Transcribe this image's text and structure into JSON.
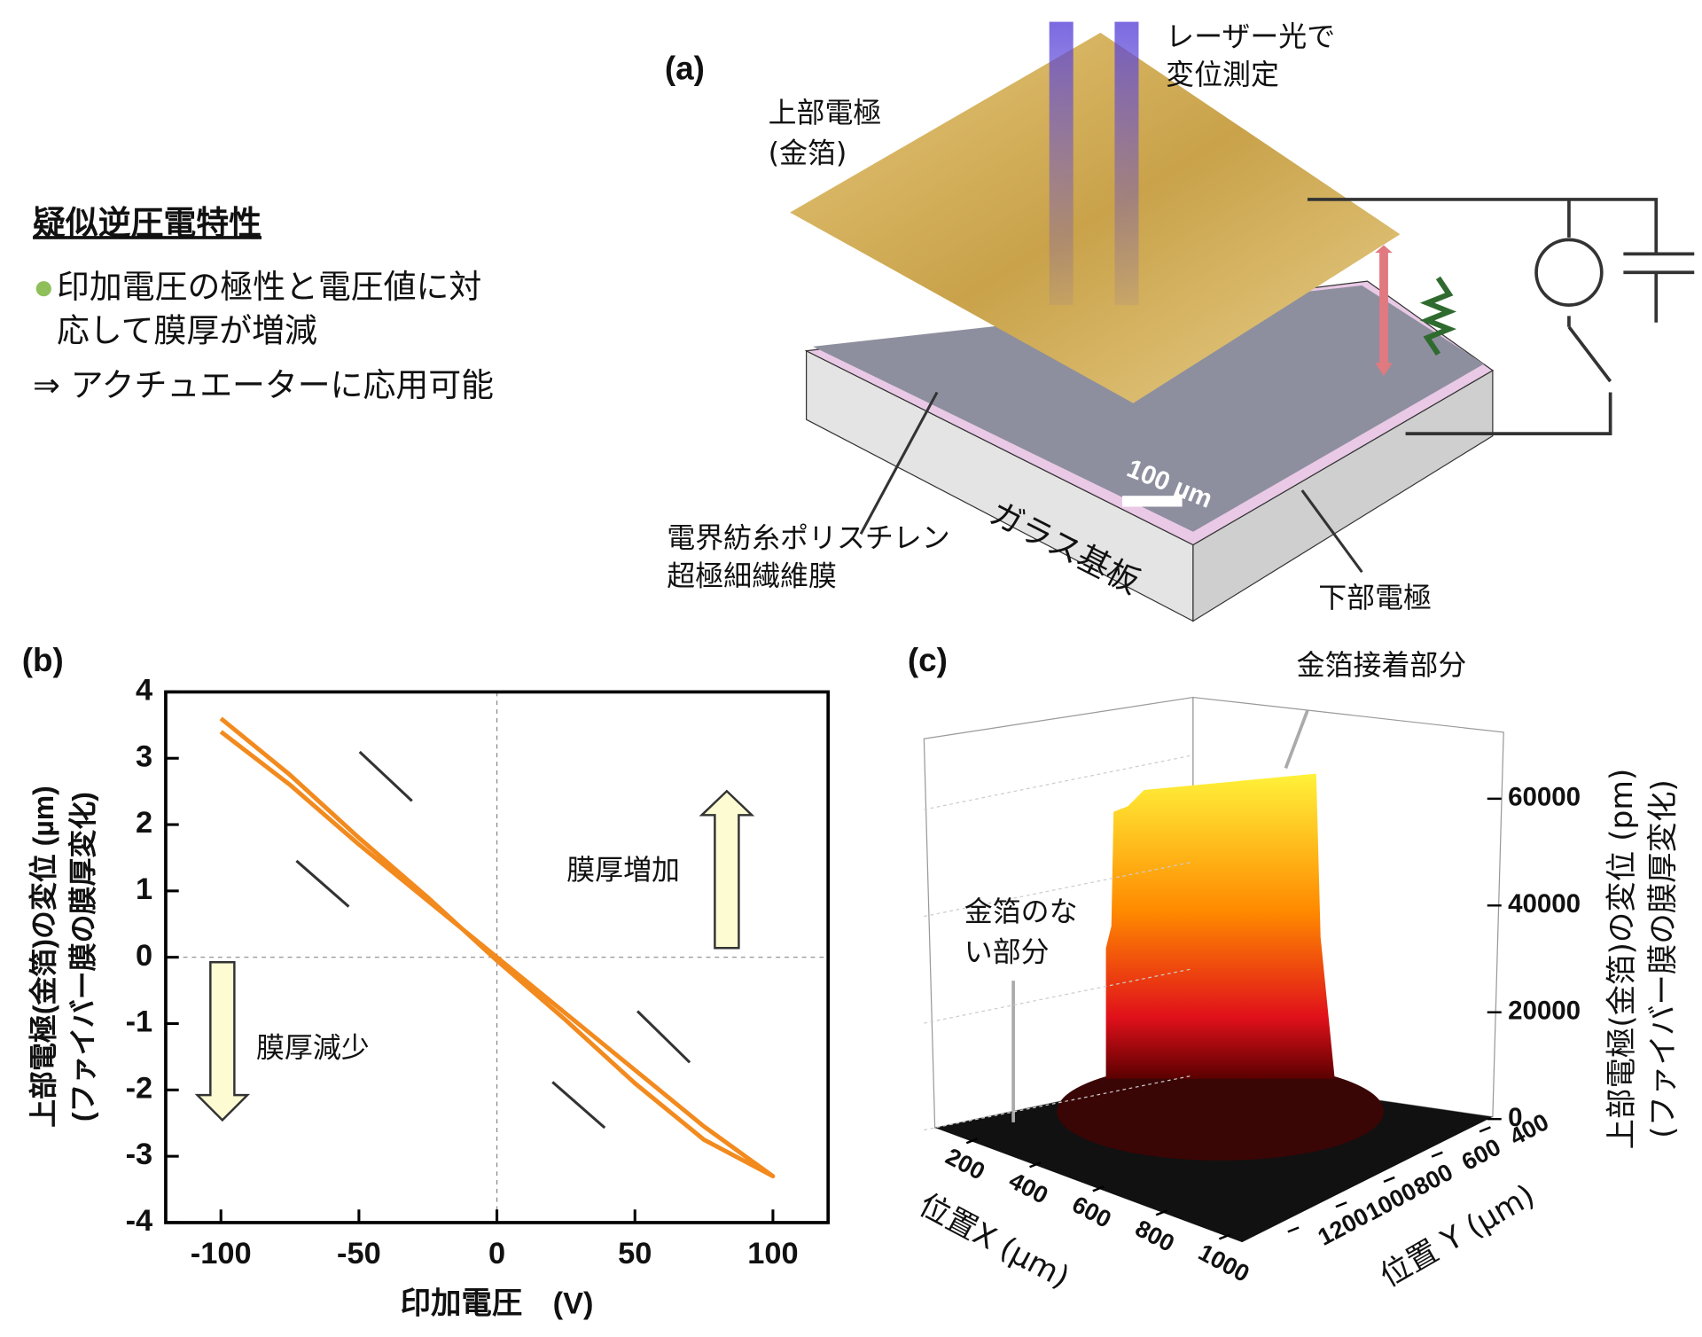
{
  "text_block": {
    "heading": "疑似逆圧電特性",
    "lines": [
      "印加電圧の極性と電圧値に対",
      "応して膜厚が増減",
      "⇒ アクチュエーターに応用可能"
    ]
  },
  "diagram": {
    "label": "(a)",
    "laser": [
      "レーザー光で",
      "変位測定"
    ],
    "top_electrode": [
      "上部電極",
      "(金箔)"
    ],
    "membrane": [
      "電界紡糸ポリスチレン",
      "超極細繊維膜"
    ],
    "substrate": "ガラス基板",
    "bottom_electrode": "下部電極",
    "scale_bar": "100 µm"
  },
  "chart_data": [
    {
      "type": "line",
      "label": "(b)",
      "xlabel": "印加電圧　(V)",
      "ylabel": [
        "上部電極(金箔)の変位 (µm)",
        "(ファイバー膜の膜厚変化)"
      ],
      "x": [
        -100,
        -75,
        -50,
        -25,
        0,
        25,
        50,
        75,
        100,
        75,
        50,
        25,
        0,
        -25,
        -50,
        -75,
        -100
      ],
      "series": [
        {
          "color": "#f28a1e",
          "values": [
            3.4,
            2.6,
            1.7,
            0.85,
            0,
            -0.85,
            -1.7,
            -2.55,
            -3.3,
            -2.75,
            -1.9,
            -0.95,
            -0.05,
            0.9,
            1.8,
            2.75,
            3.6
          ]
        }
      ],
      "xlim": [
        -120,
        120
      ],
      "xticks": [
        -100,
        -50,
        0,
        50,
        100
      ],
      "ylim": [
        -4,
        4
      ],
      "yticks": [
        -4,
        -3,
        -2,
        -1,
        0,
        1,
        2,
        3,
        4
      ],
      "zero_lines": true,
      "annotations": [
        "膜厚増加",
        "膜厚減少"
      ]
    },
    {
      "type": "surface",
      "label": "(c)",
      "xlabel": "位置X (µm)",
      "ylabel": "位置 Y (µm)",
      "zlabel": [
        "上部電極(金箔)の変位 (pm)",
        "(ファイバー膜の膜厚変化)"
      ],
      "xlim": [
        100,
        1100
      ],
      "xticks": [
        200,
        400,
        600,
        800,
        1000
      ],
      "ylim": [
        300,
        1300
      ],
      "yticks": [
        400,
        600,
        800,
        1000,
        1200
      ],
      "zlim": [
        0,
        70000
      ],
      "zticks": [
        0,
        20000,
        40000,
        60000
      ],
      "annotations": [
        "金箔接着部分",
        [
          "金箔のな",
          "い部分"
        ]
      ]
    }
  ]
}
